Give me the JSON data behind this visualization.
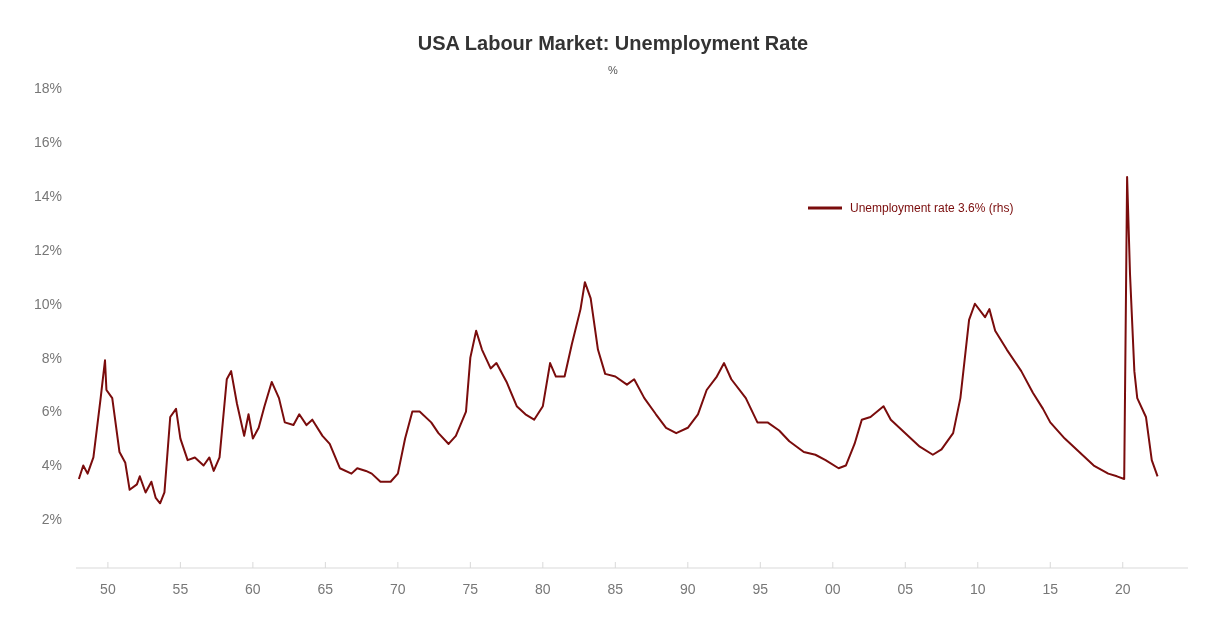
{
  "chart_data": {
    "type": "line",
    "title": "USA Labour Market: Unemployment Rate",
    "subtitle": "%",
    "xlim": [
      1947.8,
      2024.5
    ],
    "xticks": [
      {
        "value": 1950,
        "label": "50"
      },
      {
        "value": 1955,
        "label": "55"
      },
      {
        "value": 1960,
        "label": "60"
      },
      {
        "value": 1965,
        "label": "65"
      },
      {
        "value": 1970,
        "label": "70"
      },
      {
        "value": 1975,
        "label": "75"
      },
      {
        "value": 1980,
        "label": "80"
      },
      {
        "value": 1985,
        "label": "85"
      },
      {
        "value": 1990,
        "label": "90"
      },
      {
        "value": 1995,
        "label": "95"
      },
      {
        "value": 2000,
        "label": "00"
      },
      {
        "value": 2005,
        "label": "05"
      },
      {
        "value": 2010,
        "label": "10"
      },
      {
        "value": 2015,
        "label": "15"
      },
      {
        "value": 2020,
        "label": "20"
      }
    ],
    "ylim": [
      0.2,
      18
    ],
    "yticks": [
      {
        "value": 2,
        "label": "2%"
      },
      {
        "value": 4,
        "label": "4%"
      },
      {
        "value": 6,
        "label": "6%"
      },
      {
        "value": 8,
        "label": "8%"
      },
      {
        "value": 10,
        "label": "10%"
      },
      {
        "value": 12,
        "label": "12%"
      },
      {
        "value": 14,
        "label": "14%"
      },
      {
        "value": 16,
        "label": "16%"
      },
      {
        "value": 18,
        "label": "18%"
      }
    ],
    "grid": false,
    "legend": "top right",
    "series": [
      {
        "name": "Unemployment rate 3.6% (rhs)",
        "color": "#7a0c0c",
        "x": [
          1948.0,
          1948.3,
          1948.6,
          1949.0,
          1949.5,
          1949.8,
          1949.9,
          1950.3,
          1950.8,
          1951.2,
          1951.5,
          1952.0,
          1952.2,
          1952.6,
          1953.0,
          1953.3,
          1953.6,
          1953.9,
          1954.3,
          1954.7,
          1955.0,
          1955.5,
          1956.0,
          1956.6,
          1957.0,
          1957.3,
          1957.7,
          1958.2,
          1958.5,
          1958.9,
          1959.4,
          1959.7,
          1960.0,
          1960.4,
          1960.8,
          1961.3,
          1961.8,
          1962.2,
          1962.8,
          1963.2,
          1963.7,
          1964.1,
          1964.8,
          1965.3,
          1966.0,
          1966.8,
          1967.2,
          1967.8,
          1968.2,
          1968.8,
          1969.5,
          1970.0,
          1970.5,
          1971.0,
          1971.5,
          1972.3,
          1972.8,
          1973.5,
          1974.0,
          1974.7,
          1975.0,
          1975.4,
          1975.8,
          1976.4,
          1976.8,
          1977.5,
          1978.2,
          1978.8,
          1979.4,
          1980.0,
          1980.5,
          1980.9,
          1981.5,
          1982.0,
          1982.6,
          1982.9,
          1983.3,
          1983.8,
          1984.3,
          1985.0,
          1985.8,
          1986.3,
          1987.0,
          1987.8,
          1988.5,
          1989.2,
          1990.0,
          1990.7,
          1991.3,
          1992.0,
          1992.5,
          1993.0,
          1994.0,
          1994.8,
          1995.5,
          1996.3,
          1997.0,
          1998.0,
          1998.8,
          1999.5,
          2000.4,
          2000.9,
          2001.5,
          2002.0,
          2002.6,
          2003.5,
          2004.0,
          2005.0,
          2006.0,
          2006.9,
          2007.5,
          2008.3,
          2008.8,
          2009.4,
          2009.8,
          2010.5,
          2010.8,
          2011.2,
          2012.0,
          2013.0,
          2013.8,
          2014.5,
          2015.0,
          2016.0,
          2017.0,
          2018.0,
          2019.0,
          2019.6,
          2020.1,
          2020.3,
          2020.5,
          2020.8,
          2021.0,
          2021.6,
          2022.0,
          2022.4
        ],
        "values": [
          3.5,
          4.0,
          3.7,
          4.3,
          6.5,
          7.9,
          6.8,
          6.5,
          4.5,
          4.1,
          3.1,
          3.3,
          3.6,
          3.0,
          3.4,
          2.8,
          2.6,
          3.0,
          5.8,
          6.1,
          5.0,
          4.2,
          4.3,
          4.0,
          4.3,
          3.8,
          4.3,
          7.2,
          7.5,
          6.3,
          5.1,
          5.9,
          5.0,
          5.4,
          6.2,
          7.1,
          6.5,
          5.6,
          5.5,
          5.9,
          5.5,
          5.7,
          5.1,
          4.8,
          3.9,
          3.7,
          3.9,
          3.8,
          3.7,
          3.4,
          3.4,
          3.7,
          5.0,
          6.0,
          6.0,
          5.6,
          5.2,
          4.8,
          5.1,
          6.0,
          8.0,
          9.0,
          8.3,
          7.6,
          7.8,
          7.1,
          6.2,
          5.9,
          5.7,
          6.2,
          7.8,
          7.3,
          7.3,
          8.5,
          9.8,
          10.8,
          10.2,
          8.3,
          7.4,
          7.3,
          7.0,
          7.2,
          6.5,
          5.9,
          5.4,
          5.2,
          5.4,
          5.9,
          6.8,
          7.3,
          7.8,
          7.2,
          6.5,
          5.6,
          5.6,
          5.3,
          4.9,
          4.5,
          4.4,
          4.2,
          3.9,
          4.0,
          4.8,
          5.7,
          5.8,
          6.2,
          5.7,
          5.2,
          4.7,
          4.4,
          4.6,
          5.2,
          6.5,
          9.4,
          10.0,
          9.5,
          9.8,
          9.0,
          8.3,
          7.5,
          6.7,
          6.1,
          5.6,
          5.0,
          4.5,
          4.0,
          3.7,
          3.6,
          3.5,
          14.7,
          11.1,
          7.5,
          6.5,
          5.8,
          4.2,
          3.6
        ]
      }
    ]
  }
}
